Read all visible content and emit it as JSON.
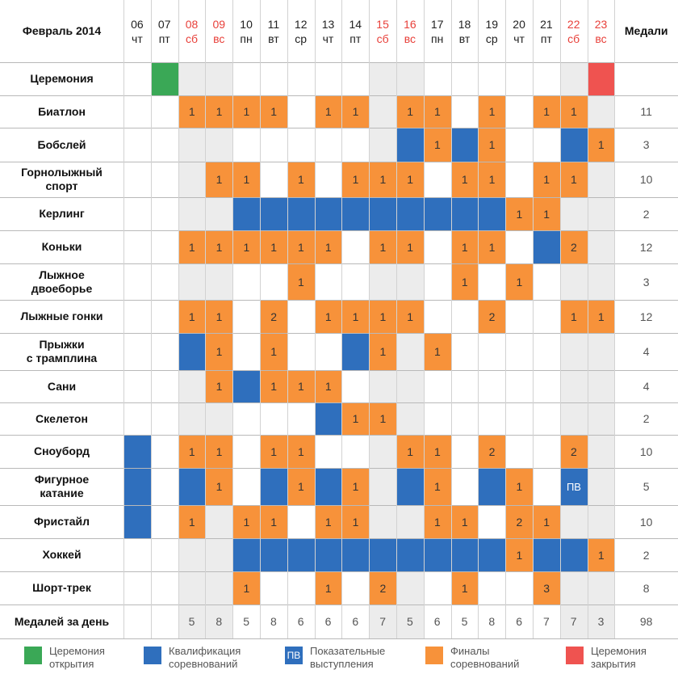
{
  "header": {
    "title": "Февраль 2014",
    "medals_label": "Медали",
    "days": [
      {
        "num": "06",
        "dow": "чт",
        "weekend": false
      },
      {
        "num": "07",
        "dow": "пт",
        "weekend": false
      },
      {
        "num": "08",
        "dow": "сб",
        "weekend": true
      },
      {
        "num": "09",
        "dow": "вс",
        "weekend": true
      },
      {
        "num": "10",
        "dow": "пн",
        "weekend": false
      },
      {
        "num": "11",
        "dow": "вт",
        "weekend": false
      },
      {
        "num": "12",
        "dow": "ср",
        "weekend": false
      },
      {
        "num": "13",
        "dow": "чт",
        "weekend": false
      },
      {
        "num": "14",
        "dow": "пт",
        "weekend": false
      },
      {
        "num": "15",
        "dow": "сб",
        "weekend": true
      },
      {
        "num": "16",
        "dow": "вс",
        "weekend": true
      },
      {
        "num": "17",
        "dow": "пн",
        "weekend": false
      },
      {
        "num": "18",
        "dow": "вт",
        "weekend": false
      },
      {
        "num": "19",
        "dow": "ср",
        "weekend": false
      },
      {
        "num": "20",
        "dow": "чт",
        "weekend": false
      },
      {
        "num": "21",
        "dow": "пт",
        "weekend": false
      },
      {
        "num": "22",
        "dow": "сб",
        "weekend": true
      },
      {
        "num": "23",
        "dow": "вс",
        "weekend": true
      }
    ]
  },
  "colors": {
    "orange": "#f7923a",
    "blue": "#2f6fbd",
    "green": "#3aa856",
    "red": "#ef5350",
    "weekend_bg": "#ececec",
    "header_red": "#e8403a"
  },
  "rows": [
    {
      "name": "Церемония",
      "key": "ceremony",
      "medals": "",
      "cells": [
        null,
        {
          "t": "green"
        },
        null,
        null,
        null,
        null,
        null,
        null,
        null,
        null,
        null,
        null,
        null,
        null,
        null,
        null,
        null,
        {
          "t": "red"
        }
      ]
    },
    {
      "name": "Биатлон",
      "key": "biathlon",
      "medals": "11",
      "cells": [
        null,
        null,
        {
          "t": "o",
          "v": "1"
        },
        {
          "t": "o",
          "v": "1"
        },
        {
          "t": "o",
          "v": "1"
        },
        {
          "t": "o",
          "v": "1"
        },
        null,
        {
          "t": "o",
          "v": "1"
        },
        {
          "t": "o",
          "v": "1"
        },
        null,
        {
          "t": "o",
          "v": "1"
        },
        {
          "t": "o",
          "v": "1"
        },
        null,
        {
          "t": "o",
          "v": "1"
        },
        null,
        {
          "t": "o",
          "v": "1"
        },
        {
          "t": "o",
          "v": "1"
        },
        null
      ]
    },
    {
      "name": "Бобслей",
      "key": "bobsleigh",
      "medals": "3",
      "cells": [
        null,
        null,
        null,
        null,
        null,
        null,
        null,
        null,
        null,
        null,
        {
          "t": "b"
        },
        {
          "t": "o",
          "v": "1"
        },
        {
          "t": "b"
        },
        {
          "t": "o",
          "v": "1"
        },
        null,
        null,
        {
          "t": "b"
        },
        {
          "t": "o",
          "v": "1"
        }
      ]
    },
    {
      "name": "Горнолыжный\nспорт",
      "key": "alpine",
      "medals": "10",
      "cells": [
        null,
        null,
        null,
        {
          "t": "o",
          "v": "1"
        },
        {
          "t": "o",
          "v": "1"
        },
        null,
        {
          "t": "o",
          "v": "1"
        },
        null,
        {
          "t": "o",
          "v": "1"
        },
        {
          "t": "o",
          "v": "1"
        },
        {
          "t": "o",
          "v": "1"
        },
        null,
        {
          "t": "o",
          "v": "1"
        },
        {
          "t": "o",
          "v": "1"
        },
        null,
        {
          "t": "o",
          "v": "1"
        },
        {
          "t": "o",
          "v": "1"
        },
        null
      ]
    },
    {
      "name": "Керлинг",
      "key": "curling",
      "medals": "2",
      "cells": [
        null,
        null,
        null,
        null,
        {
          "t": "b"
        },
        {
          "t": "b"
        },
        {
          "t": "b"
        },
        {
          "t": "b"
        },
        {
          "t": "b"
        },
        {
          "t": "b"
        },
        {
          "t": "b"
        },
        {
          "t": "b"
        },
        {
          "t": "b"
        },
        {
          "t": "b"
        },
        {
          "t": "o",
          "v": "1"
        },
        {
          "t": "o",
          "v": "1"
        },
        null,
        null
      ]
    },
    {
      "name": "Коньки",
      "key": "speed-skating",
      "medals": "12",
      "cells": [
        null,
        null,
        {
          "t": "o",
          "v": "1"
        },
        {
          "t": "o",
          "v": "1"
        },
        {
          "t": "o",
          "v": "1"
        },
        {
          "t": "o",
          "v": "1"
        },
        {
          "t": "o",
          "v": "1"
        },
        {
          "t": "o",
          "v": "1"
        },
        null,
        {
          "t": "o",
          "v": "1"
        },
        {
          "t": "o",
          "v": "1"
        },
        null,
        {
          "t": "o",
          "v": "1"
        },
        {
          "t": "o",
          "v": "1"
        },
        null,
        {
          "t": "b"
        },
        {
          "t": "o",
          "v": "2"
        },
        null
      ]
    },
    {
      "name": "Лыжное\nдвоеборье",
      "key": "nordic-combined",
      "medals": "3",
      "cells": [
        null,
        null,
        null,
        null,
        null,
        null,
        {
          "t": "o",
          "v": "1"
        },
        null,
        null,
        null,
        null,
        null,
        {
          "t": "o",
          "v": "1"
        },
        null,
        {
          "t": "o",
          "v": "1"
        },
        null,
        null,
        null
      ]
    },
    {
      "name": "Лыжные гонки",
      "key": "cross-country",
      "medals": "12",
      "cells": [
        null,
        null,
        {
          "t": "o",
          "v": "1"
        },
        {
          "t": "o",
          "v": "1"
        },
        null,
        {
          "t": "o",
          "v": "2"
        },
        null,
        {
          "t": "o",
          "v": "1"
        },
        {
          "t": "o",
          "v": "1"
        },
        {
          "t": "o",
          "v": "1"
        },
        {
          "t": "o",
          "v": "1"
        },
        null,
        null,
        {
          "t": "o",
          "v": "2"
        },
        null,
        null,
        {
          "t": "o",
          "v": "1"
        },
        {
          "t": "o",
          "v": "1"
        }
      ]
    },
    {
      "name": "Прыжки\nс трамплина",
      "key": "ski-jumping",
      "medals": "4",
      "cells": [
        null,
        null,
        {
          "t": "b"
        },
        {
          "t": "o",
          "v": "1"
        },
        null,
        {
          "t": "o",
          "v": "1"
        },
        null,
        null,
        {
          "t": "b"
        },
        {
          "t": "o",
          "v": "1"
        },
        null,
        {
          "t": "o",
          "v": "1"
        },
        null,
        null,
        null,
        null,
        null,
        null
      ]
    },
    {
      "name": "Сани",
      "key": "luge",
      "medals": "4",
      "cells": [
        null,
        null,
        null,
        {
          "t": "o",
          "v": "1"
        },
        {
          "t": "b"
        },
        {
          "t": "o",
          "v": "1"
        },
        {
          "t": "o",
          "v": "1"
        },
        {
          "t": "o",
          "v": "1"
        },
        null,
        null,
        null,
        null,
        null,
        null,
        null,
        null,
        null,
        null
      ]
    },
    {
      "name": "Скелетон",
      "key": "skeleton",
      "medals": "2",
      "cells": [
        null,
        null,
        null,
        null,
        null,
        null,
        null,
        {
          "t": "b"
        },
        {
          "t": "o",
          "v": "1"
        },
        {
          "t": "o",
          "v": "1"
        },
        null,
        null,
        null,
        null,
        null,
        null,
        null,
        null
      ]
    },
    {
      "name": "Сноуборд",
      "key": "snowboard",
      "medals": "10",
      "cells": [
        {
          "t": "b"
        },
        null,
        {
          "t": "o",
          "v": "1"
        },
        {
          "t": "o",
          "v": "1"
        },
        null,
        {
          "t": "o",
          "v": "1"
        },
        {
          "t": "o",
          "v": "1"
        },
        null,
        null,
        null,
        {
          "t": "o",
          "v": "1"
        },
        {
          "t": "o",
          "v": "1"
        },
        null,
        {
          "t": "o",
          "v": "2"
        },
        null,
        null,
        {
          "t": "o",
          "v": "2"
        },
        null
      ]
    },
    {
      "name": "Фигурное\nкатание",
      "key": "figure-skating",
      "medals": "5",
      "cells": [
        {
          "t": "b"
        },
        null,
        {
          "t": "b"
        },
        {
          "t": "o",
          "v": "1"
        },
        null,
        {
          "t": "b"
        },
        {
          "t": "o",
          "v": "1"
        },
        {
          "t": "b"
        },
        {
          "t": "o",
          "v": "1"
        },
        null,
        {
          "t": "b"
        },
        {
          "t": "o",
          "v": "1"
        },
        null,
        {
          "t": "b"
        },
        {
          "t": "o",
          "v": "1"
        },
        null,
        {
          "t": "b",
          "v": "ПВ"
        },
        null
      ]
    },
    {
      "name": "Фристайл",
      "key": "freestyle",
      "medals": "10",
      "cells": [
        {
          "t": "b"
        },
        null,
        {
          "t": "o",
          "v": "1"
        },
        null,
        {
          "t": "o",
          "v": "1"
        },
        {
          "t": "o",
          "v": "1"
        },
        null,
        {
          "t": "o",
          "v": "1"
        },
        {
          "t": "o",
          "v": "1"
        },
        null,
        null,
        {
          "t": "o",
          "v": "1"
        },
        {
          "t": "o",
          "v": "1"
        },
        null,
        {
          "t": "o",
          "v": "2"
        },
        {
          "t": "o",
          "v": "1"
        },
        null,
        null
      ]
    },
    {
      "name": "Хоккей",
      "key": "hockey",
      "medals": "2",
      "cells": [
        null,
        null,
        null,
        null,
        {
          "t": "b"
        },
        {
          "t": "b"
        },
        {
          "t": "b"
        },
        {
          "t": "b"
        },
        {
          "t": "b"
        },
        {
          "t": "b"
        },
        {
          "t": "b"
        },
        {
          "t": "b"
        },
        {
          "t": "b"
        },
        {
          "t": "b"
        },
        {
          "t": "o",
          "v": "1"
        },
        {
          "t": "b"
        },
        {
          "t": "b"
        },
        {
          "t": "o",
          "v": "1"
        }
      ]
    },
    {
      "name": "Шорт-трек",
      "key": "short-track",
      "medals": "8",
      "cells": [
        null,
        null,
        null,
        null,
        {
          "t": "o",
          "v": "1"
        },
        null,
        null,
        {
          "t": "o",
          "v": "1"
        },
        null,
        {
          "t": "o",
          "v": "2"
        },
        null,
        null,
        {
          "t": "o",
          "v": "1"
        },
        null,
        null,
        {
          "t": "o",
          "v": "3"
        },
        null,
        null
      ]
    }
  ],
  "totals": {
    "label": "Медалей за день",
    "values": [
      "",
      "",
      "5",
      "8",
      "5",
      "8",
      "6",
      "6",
      "6",
      "7",
      "5",
      "6",
      "5",
      "8",
      "6",
      "7",
      "7",
      "3"
    ],
    "overall": "98"
  },
  "legend": [
    {
      "key": "opening",
      "color": "green",
      "label": "Церемония\nоткрытия",
      "box_text": ""
    },
    {
      "key": "qualification",
      "color": "blue",
      "label": "Квалификация\nсоревнований",
      "box_text": ""
    },
    {
      "key": "exhibition",
      "color": "blue",
      "label": "Показательные\nвыступления",
      "box_text": "ПВ"
    },
    {
      "key": "finals",
      "color": "orange",
      "label": "Финалы\nсоревнований",
      "box_text": ""
    },
    {
      "key": "closing",
      "color": "red",
      "label": "Церемония\nзакрытия",
      "box_text": ""
    }
  ]
}
